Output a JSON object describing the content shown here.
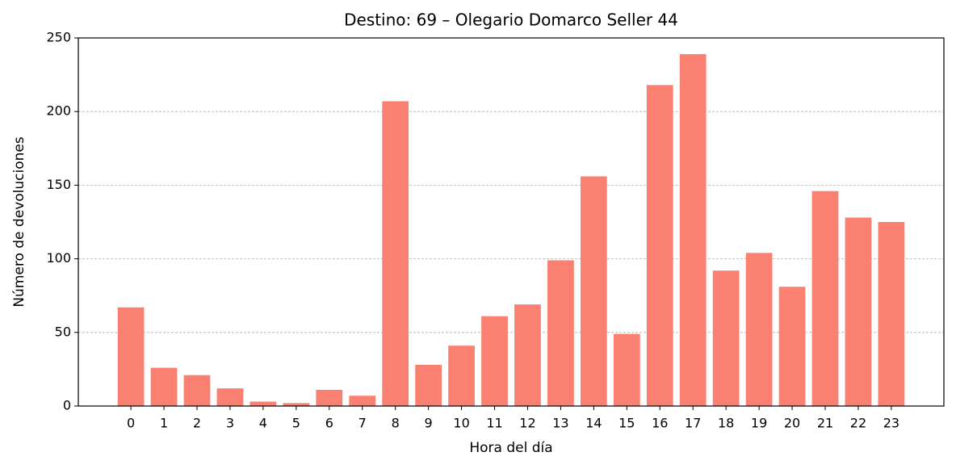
{
  "chart_data": {
    "type": "bar",
    "title": "Destino: 69 – Olegario Domarco Seller 44",
    "x_label": "Hora del día",
    "y_label": "Número de devoluciones",
    "categories": [
      "0",
      "1",
      "2",
      "3",
      "4",
      "5",
      "6",
      "7",
      "8",
      "9",
      "10",
      "11",
      "12",
      "13",
      "14",
      "15",
      "16",
      "17",
      "18",
      "19",
      "20",
      "21",
      "22",
      "23"
    ],
    "values": [
      67,
      26,
      21,
      12,
      3,
      2,
      11,
      7,
      207,
      28,
      41,
      61,
      69,
      99,
      156,
      49,
      218,
      239,
      92,
      104,
      81,
      146,
      128,
      125
    ],
    "color": "#fa8072",
    "ylim": [
      0,
      250
    ],
    "yticks": [
      0,
      50,
      100,
      150,
      200,
      250
    ],
    "grid": true
  }
}
